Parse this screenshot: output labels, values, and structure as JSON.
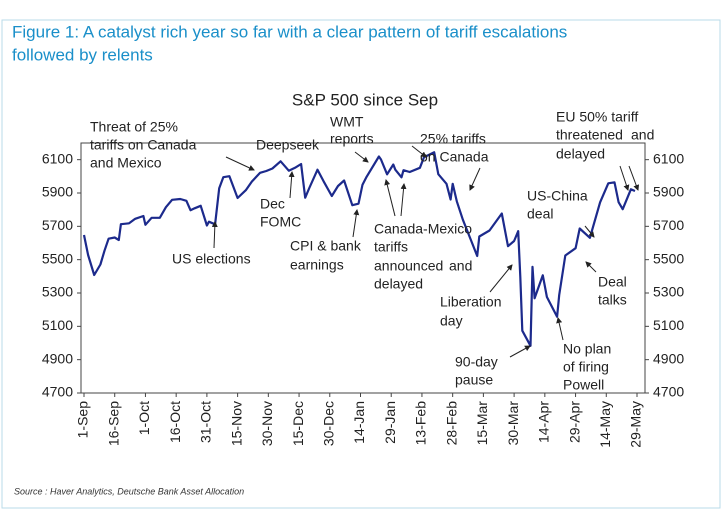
{
  "chart_data": {
    "type": "line",
    "figure_title": [
      "Figure 1: A catalyst rich year so far with a clear pattern of tariff escalations",
      "followed by relents"
    ],
    "title": "S&P 500 since Sep",
    "source": "Source : Haver Analytics, Deutsche Bank Asset Allocation",
    "x": [
      0,
      2,
      5,
      8,
      10,
      12,
      15,
      17,
      18,
      22,
      25,
      29,
      30,
      33,
      37,
      40,
      43,
      47,
      50,
      52,
      54,
      57,
      60,
      61,
      64,
      66,
      68,
      71,
      75,
      79,
      82,
      86,
      89,
      92,
      96,
      100,
      103,
      106,
      108,
      110,
      114,
      117,
      121,
      124,
      127,
      131,
      134,
      136,
      138,
      144,
      145,
      148,
      151,
      152,
      155,
      156,
      159,
      164,
      166,
      171,
      173,
      177,
      179,
      180,
      182,
      185,
      189,
      192,
      193,
      198,
      204,
      207,
      210,
      212,
      213,
      214,
      218,
      219,
      220,
      224,
      226,
      231,
      232,
      235,
      240,
      242,
      247,
      252,
      256,
      259,
      261,
      263,
      267,
      269
    ],
    "series": [
      {
        "color": "#1c2a8c",
        "values": [
          5648,
          5528,
          5408,
          5471,
          5554,
          5626,
          5633,
          5618,
          5713,
          5718,
          5745,
          5762,
          5709,
          5751,
          5751,
          5815,
          5859,
          5864,
          5853,
          5797,
          5808,
          5823,
          5705,
          5728,
          5712,
          5929,
          5995,
          6001,
          5870,
          5917,
          5969,
          6021,
          6032,
          6047,
          6090,
          6034,
          6051,
          6074,
          5872,
          5930,
          6040,
          5970,
          5882,
          5942,
          5975,
          5827,
          5836,
          5950,
          5997,
          6119,
          6101,
          6012,
          6071,
          6040,
          5994,
          6037,
          6026,
          6051,
          6115,
          6144,
          6013,
          5955,
          5861,
          5955,
          5850,
          5739,
          5615,
          5522,
          5639,
          5675,
          5777,
          5581,
          5612,
          5671,
          5397,
          5074,
          4983,
          5457,
          5268,
          5406,
          5276,
          5158,
          5288,
          5525,
          5569,
          5687,
          5631,
          5844,
          5958,
          5964,
          5845,
          5803,
          5922,
          5912
        ]
      }
    ],
    "xlim": [
      0,
      270
    ],
    "xticks": [
      {
        "value": 0,
        "label": "1-Sep"
      },
      {
        "value": 15,
        "label": "16-Sep"
      },
      {
        "value": 30,
        "label": "1-Oct"
      },
      {
        "value": 45,
        "label": "16-Oct"
      },
      {
        "value": 60,
        "label": "31-Oct"
      },
      {
        "value": 75,
        "label": "15-Nov"
      },
      {
        "value": 90,
        "label": "30-Nov"
      },
      {
        "value": 105,
        "label": "15-Dec"
      },
      {
        "value": 120,
        "label": "30-Dec"
      },
      {
        "value": 135,
        "label": "14-Jan"
      },
      {
        "value": 150,
        "label": "29-Jan"
      },
      {
        "value": 165,
        "label": "13-Feb"
      },
      {
        "value": 180,
        "label": "28-Feb"
      },
      {
        "value": 195,
        "label": "15-Mar"
      },
      {
        "value": 210,
        "label": "30-Mar"
      },
      {
        "value": 225,
        "label": "14-Apr"
      },
      {
        "value": 240,
        "label": "29-Apr"
      },
      {
        "value": 255,
        "label": "14-May"
      },
      {
        "value": 270,
        "label": "29-May"
      }
    ],
    "ylim": [
      4700,
      6200
    ],
    "yticks": [
      4700,
      4900,
      5100,
      5300,
      5500,
      5700,
      5900,
      6100
    ],
    "annotations": [
      {
        "text": "Threat of 25%",
        "color": "#e98a2c"
      },
      {
        "text": "tariffs on Canada",
        "color": "#e98a2c"
      },
      {
        "text": "and Mexico",
        "color": "#e98a2c"
      },
      {
        "text": "Deepseek",
        "color": "#e98a2c"
      },
      {
        "text": "Dec",
        "color": "#e98a2c"
      },
      {
        "text": "FOMC",
        "color": "#e98a2c"
      },
      {
        "text": "US elections",
        "color": "#3aa34a"
      },
      {
        "text": "CPI & bank",
        "color": "#3aa34a"
      },
      {
        "text": "earnings",
        "color": "#3aa34a"
      },
      {
        "text": "WMT",
        "color": "#e98a2c"
      },
      {
        "text": "reports",
        "color": "#e98a2c"
      },
      {
        "text": "25% tariffs",
        "color": "#e98a2c"
      },
      {
        "text": "on Canada",
        "color": "#e98a2c"
      },
      {
        "text": "Canada-Mexico",
        "color": "#e98a2c"
      },
      {
        "text": "tariffs",
        "color": "#e98a2c"
      },
      {
        "text": "announced",
        "color": "#e98a2c"
      },
      {
        "text": "and",
        "color": "#3aa34a"
      },
      {
        "text": "delayed",
        "color": "#e98a2c"
      },
      {
        "text": "Liberation",
        "color": "#e98a2c"
      },
      {
        "text": "day",
        "color": "#e98a2c"
      },
      {
        "text": "90-day",
        "color": "#3aa34a"
      },
      {
        "text": "pause",
        "color": "#3aa34a"
      },
      {
        "text": "US-China",
        "color": "#3aa34a"
      },
      {
        "text": "deal",
        "color": "#3aa34a"
      },
      {
        "text": "EU 50% tariff",
        "color": "#e98a2c"
      },
      {
        "text": "threatened",
        "color": "#e98a2c"
      },
      {
        "text": "and",
        "color": "#3aa34a"
      },
      {
        "text": "delayed",
        "color": "#3aa34a"
      },
      {
        "text": "Deal",
        "color": "#3aa34a"
      },
      {
        "text": "talks",
        "color": "#3aa34a"
      },
      {
        "text": "No plan",
        "color": "#3aa34a"
      },
      {
        "text": "of firing",
        "color": "#3aa34a"
      },
      {
        "text": "Powell",
        "color": "#3aa34a"
      }
    ]
  }
}
